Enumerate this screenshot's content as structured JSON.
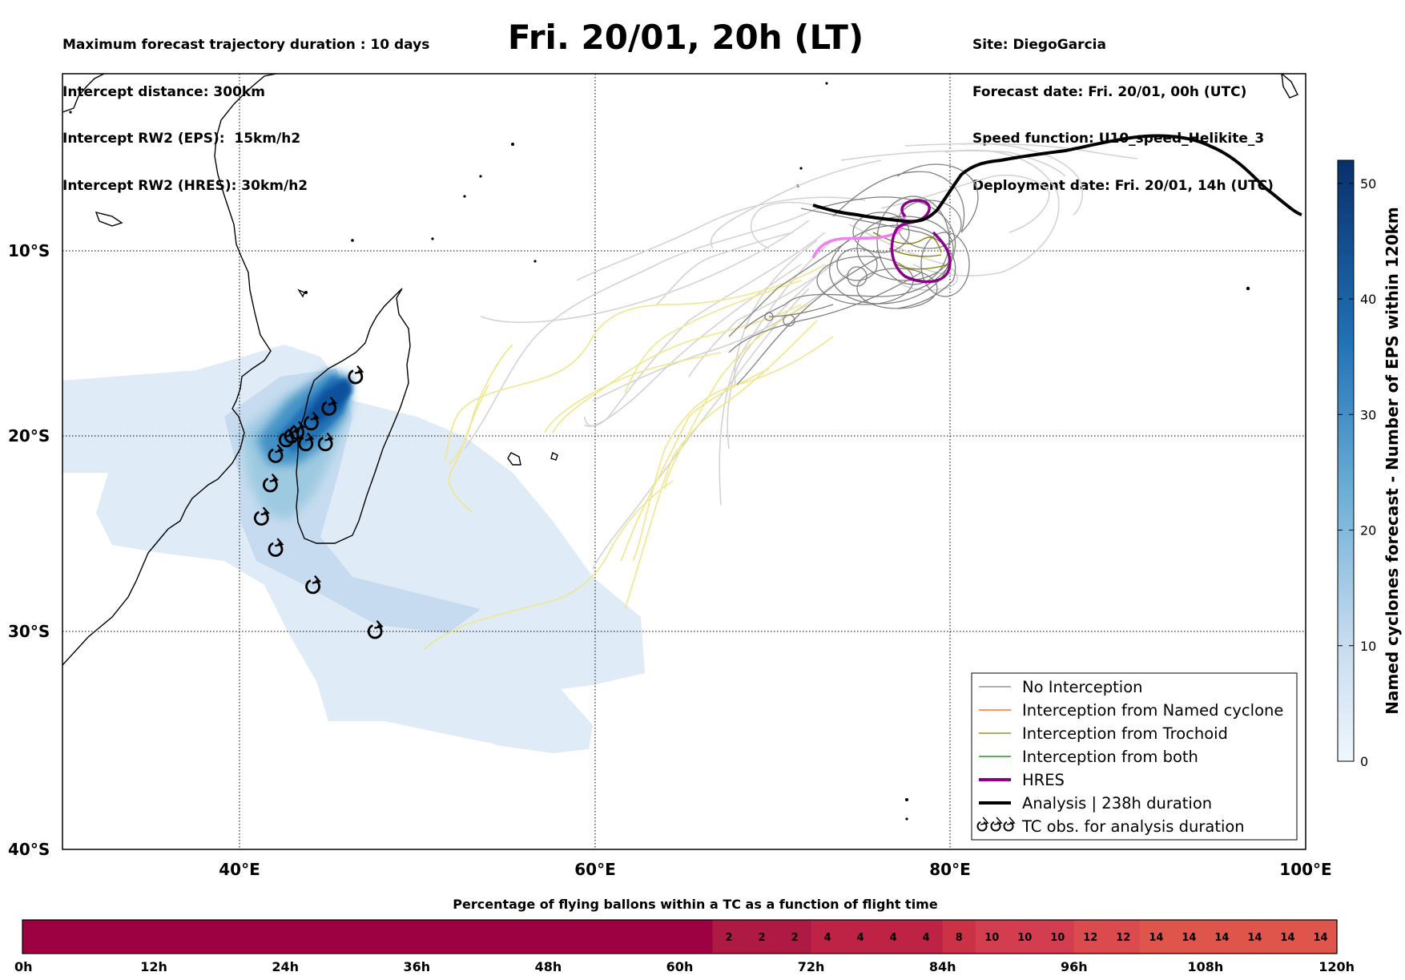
{
  "header": {
    "title": "Fri. 20/01, 20h (LT)",
    "left_lines": [
      "Maximum forecast trajectory duration : 10 days",
      "Intercept distance: 300km",
      "Intercept RW2 (EPS):  15km/h2",
      "Intercept RW2 (HRES): 30km/h2"
    ],
    "right_lines": [
      "Site: DiegoGarcia",
      "Forecast date: Fri. 20/01, 00h (UTC)",
      "Speed function: U10_speed_Helikite_3",
      "Deployment date: Fri. 20/01, 14h (UTC)"
    ]
  },
  "map": {
    "lon_range": [
      30,
      100
    ],
    "lat_range": [
      -40,
      -1
    ],
    "lon_ticks": [
      "40°E",
      "60°E",
      "80°E",
      "100°E"
    ],
    "lat_ticks": [
      "10°S",
      "20°S",
      "30°S",
      "40°S"
    ],
    "colors": {
      "no_interception": "#808080",
      "named_cyclone": "#ff5500",
      "trochoid": "#808000",
      "both": "#008000",
      "hres": "#8b008b",
      "analysis": "#000000",
      "eps_light": "#d3d3d3",
      "eps_yellow": "#f0e68c"
    },
    "tc_obs": [
      [
        46.5,
        -16.8
      ],
      [
        45.0,
        -18.5
      ],
      [
        44.0,
        -19.3
      ],
      [
        43.2,
        -19.8
      ],
      [
        42.6,
        -20.2
      ],
      [
        42.9,
        -20.0
      ],
      [
        43.7,
        -20.4
      ],
      [
        44.8,
        -20.4
      ],
      [
        42.0,
        -21.0
      ],
      [
        41.7,
        -22.5
      ],
      [
        41.2,
        -24.2
      ],
      [
        42.0,
        -25.8
      ],
      [
        44.1,
        -27.7
      ],
      [
        47.6,
        -30.0
      ]
    ]
  },
  "legend": {
    "items": [
      {
        "label": "No Interception",
        "color": "#808080",
        "kind": "thin"
      },
      {
        "label": "Interception from Named cyclone",
        "color": "#ff5500",
        "kind": "thin"
      },
      {
        "label": "Interception from Trochoid",
        "color": "#808000",
        "kind": "thin"
      },
      {
        "label": "Interception from both",
        "color": "#008000",
        "kind": "thin"
      },
      {
        "label": "HRES",
        "color": "#8b008b",
        "kind": "thick"
      },
      {
        "label": "Analysis | 238h duration",
        "color": "#000000",
        "kind": "thick"
      },
      {
        "label": "TC obs. for analysis duration",
        "color": "#000000",
        "kind": "tc"
      }
    ]
  },
  "colorbar": {
    "label": "Named cyclones forecast - Number of EPS within 120km",
    "ticks": [
      "0",
      "10",
      "20",
      "30",
      "40",
      "50"
    ],
    "range": [
      0,
      52
    ],
    "color_low": "#e8f1fa",
    "color_high": "#08306b"
  },
  "bottom_bar": {
    "title": "Percentage of flying ballons within a TC as a function of flight time",
    "time_labels": [
      "0h",
      "12h",
      "24h",
      "36h",
      "48h",
      "60h",
      "72h",
      "84h",
      "96h",
      "108h",
      "120h"
    ],
    "max_hours": 120,
    "segments": [
      {
        "from_h": 0,
        "to_h": 63,
        "value": "",
        "color": "#9e0142"
      },
      {
        "from_h": 63,
        "to_h": 66,
        "value": "2",
        "color": "#ae1a44"
      },
      {
        "from_h": 66,
        "to_h": 69,
        "value": "2",
        "color": "#ae1a44"
      },
      {
        "from_h": 69,
        "to_h": 72,
        "value": "2",
        "color": "#ae1a44"
      },
      {
        "from_h": 72,
        "to_h": 75,
        "value": "4",
        "color": "#be2346"
      },
      {
        "from_h": 75,
        "to_h": 78,
        "value": "4",
        "color": "#be2346"
      },
      {
        "from_h": 78,
        "to_h": 81,
        "value": "4",
        "color": "#be2346"
      },
      {
        "from_h": 81,
        "to_h": 84,
        "value": "4",
        "color": "#be2346"
      },
      {
        "from_h": 84,
        "to_h": 87,
        "value": "8",
        "color": "#cc3246"
      },
      {
        "from_h": 87,
        "to_h": 90,
        "value": "10",
        "color": "#d43d4f"
      },
      {
        "from_h": 90,
        "to_h": 93,
        "value": "10",
        "color": "#d43d4f"
      },
      {
        "from_h": 93,
        "to_h": 96,
        "value": "10",
        "color": "#d43d4f"
      },
      {
        "from_h": 96,
        "to_h": 99,
        "value": "12",
        "color": "#db4a4d"
      },
      {
        "from_h": 99,
        "to_h": 102,
        "value": "12",
        "color": "#db4a4d"
      },
      {
        "from_h": 102,
        "to_h": 105,
        "value": "14",
        "color": "#e0554b"
      },
      {
        "from_h": 105,
        "to_h": 108,
        "value": "14",
        "color": "#e0554b"
      },
      {
        "from_h": 108,
        "to_h": 111,
        "value": "14",
        "color": "#e0554b"
      },
      {
        "from_h": 111,
        "to_h": 114,
        "value": "14",
        "color": "#e0554b"
      },
      {
        "from_h": 114,
        "to_h": 117,
        "value": "14",
        "color": "#e0554b"
      },
      {
        "from_h": 117,
        "to_h": 120,
        "value": "14",
        "color": "#e0554b"
      }
    ]
  }
}
